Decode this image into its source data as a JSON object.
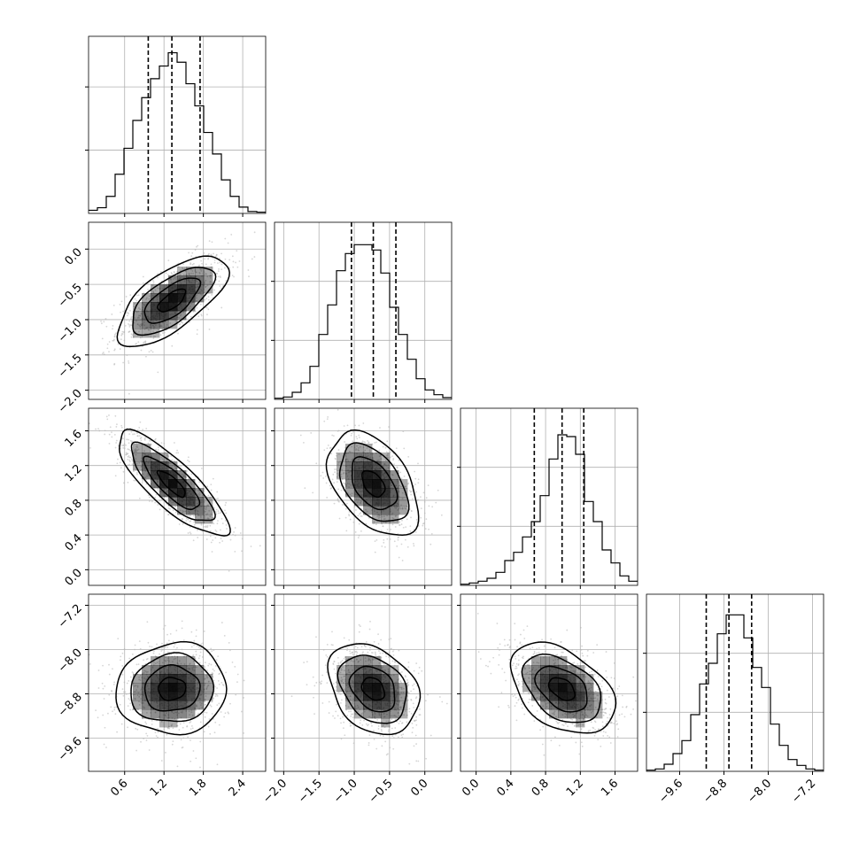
{
  "chart_data": {
    "type": "corner",
    "parameters": [
      {
        "range": [
          0.05,
          2.75
        ],
        "ticks": [
          0.6,
          1.2,
          1.8,
          2.4
        ],
        "tick_labels": [
          "0.6",
          "1.2",
          "1.8",
          "2.4"
        ],
        "quantiles": [
          0.96,
          1.32,
          1.75
        ],
        "hist_edges": [
          0.05,
          0.185,
          0.32,
          0.455,
          0.59,
          0.725,
          0.86,
          0.995,
          1.13,
          1.265,
          1.4,
          1.535,
          1.67,
          1.805,
          1.94,
          2.075,
          2.21,
          2.345,
          2.48,
          2.615,
          2.75
        ],
        "hist_counts": [
          5,
          9,
          27,
          62,
          103,
          147,
          183,
          213,
          233,
          254,
          239,
          205,
          170,
          128,
          94,
          53,
          27,
          10,
          3,
          2
        ],
        "hist_ymax": 280,
        "hist_yticks": [
          100,
          200
        ]
      },
      {
        "range": [
          -2.13,
          0.38
        ],
        "ticks": [
          -2.0,
          -1.5,
          -1.0,
          -0.5,
          0.0
        ],
        "tick_labels": [
          "−2.0",
          "−1.5",
          "−1.0",
          "−0.5",
          "0.0"
        ],
        "quantiles": [
          -1.04,
          -0.73,
          -0.41
        ],
        "hist_edges": [
          -2.13,
          -2.0045,
          -1.879,
          -1.7535,
          -1.628,
          -1.5025,
          -1.377,
          -1.2515,
          -1.126,
          -1.0005,
          -0.875,
          -0.7495,
          -0.624,
          -0.4985,
          -0.373,
          -0.2475,
          -0.122,
          0.0035,
          0.129,
          0.2545,
          0.38
        ],
        "hist_counts": [
          2,
          4,
          12,
          28,
          56,
          110,
          160,
          218,
          247,
          262,
          262,
          253,
          214,
          156,
          110,
          68,
          35,
          16,
          8,
          3
        ],
        "hist_ymax": 300,
        "hist_yticks": [
          100,
          200
        ]
      },
      {
        "range": [
          -0.18,
          1.86
        ],
        "ticks": [
          0.0,
          0.4,
          0.8,
          1.2,
          1.6
        ],
        "tick_labels": [
          "0.0",
          "0.4",
          "0.8",
          "1.2",
          "1.6"
        ],
        "quantiles": [
          0.67,
          0.99,
          1.24
        ],
        "hist_edges": [
          -0.18,
          -0.078,
          0.024,
          0.126,
          0.228,
          0.33,
          0.432,
          0.534,
          0.636,
          0.738,
          0.84,
          0.942,
          1.044,
          1.146,
          1.248,
          1.35,
          1.452,
          1.554,
          1.656,
          1.758,
          1.86
        ],
        "hist_counts": [
          2,
          4,
          7,
          12,
          22,
          42,
          56,
          82,
          108,
          152,
          214,
          255,
          252,
          222,
          142,
          108,
          60,
          38,
          16,
          7
        ],
        "hist_ymax": 300,
        "hist_yticks": [
          100,
          200
        ]
      },
      {
        "range": [
          -10.2,
          -7.0
        ],
        "ticks": [
          -9.6,
          -8.8,
          -8.0,
          -7.2
        ],
        "tick_labels": [
          "−9.6",
          "−8.8",
          "−8.0",
          "−7.2"
        ],
        "quantiles": [
          -9.12,
          -8.71,
          -8.3
        ],
        "hist_edges": [
          -10.2,
          -10.04,
          -9.88,
          -9.72,
          -9.56,
          -9.4,
          -9.24,
          -9.08,
          -8.92,
          -8.76,
          -8.6,
          -8.44,
          -8.28,
          -8.12,
          -7.96,
          -7.8,
          -7.64,
          -7.48,
          -7.32,
          -7.16,
          -7.0
        ],
        "hist_counts": [
          2,
          4,
          12,
          30,
          52,
          96,
          148,
          183,
          233,
          265,
          265,
          226,
          176,
          142,
          80,
          44,
          20,
          10,
          4,
          2
        ],
        "hist_ymax": 300,
        "hist_yticks": [
          100,
          200
        ]
      }
    ],
    "pairs": [
      {
        "x": 0,
        "y": 1,
        "mean": [
          1.32,
          -0.73
        ],
        "sd": [
          0.42,
          0.32
        ],
        "rho": 0.68
      },
      {
        "x": 0,
        "y": 2,
        "mean": [
          1.32,
          0.99
        ],
        "sd": [
          0.42,
          0.3
        ],
        "rho": -0.82
      },
      {
        "x": 1,
        "y": 2,
        "mean": [
          -0.73,
          0.99
        ],
        "sd": [
          0.32,
          0.3
        ],
        "rho": -0.45
      },
      {
        "x": 0,
        "y": 3,
        "mean": [
          1.32,
          -8.71
        ],
        "sd": [
          0.42,
          0.41
        ],
        "rho": 0.05
      },
      {
        "x": 1,
        "y": 3,
        "mean": [
          -0.73,
          -8.71
        ],
        "sd": [
          0.32,
          0.41
        ],
        "rho": -0.3
      },
      {
        "x": 2,
        "y": 3,
        "mean": [
          0.99,
          -8.71
        ],
        "sd": [
          0.3,
          0.41
        ],
        "rho": -0.42
      }
    ],
    "contour_levels_sigma": [
      0.5,
      1.0,
      1.5,
      2.0
    ],
    "grid": true,
    "colors": {
      "line": "#000000",
      "grid": "#b0b0b0",
      "points": "#b4b4b4",
      "density": "#000000"
    }
  }
}
